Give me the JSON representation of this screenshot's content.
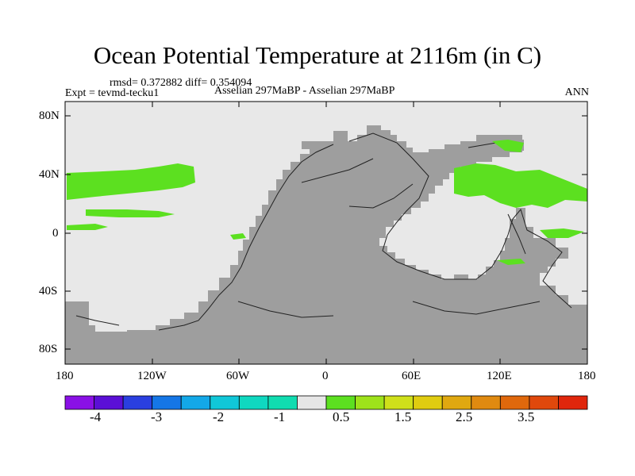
{
  "title": "Ocean Potential Temperature at 2116m (in C)",
  "stats": "rmsd= 0.372882 diff= 0.354094",
  "expt": "Expt = tevmd-tecku1",
  "subtitle": "Asselian 297MaBP - Asselian 297MaBP",
  "season": "ANN",
  "map": {
    "land_color": "#9e9e9e",
    "ocean_color": "#e8e8e8",
    "lat_ticks": [
      "80N",
      "40N",
      "0",
      "40S",
      "80S"
    ],
    "lon_ticks": [
      "180",
      "120W",
      "60W",
      "0",
      "60E",
      "120E",
      "180"
    ]
  },
  "colorbar": {
    "colors": [
      "#8a10e6",
      "#5b0fd6",
      "#2a3fe0",
      "#1576e6",
      "#13a8e8",
      "#10c7d8",
      "#0fd8c0",
      "#10dcb0",
      "#e6e6e6",
      "#5ce020",
      "#9ee21a",
      "#cfe01a",
      "#e0cc10",
      "#e0a810",
      "#e08a10",
      "#e0680c",
      "#e0480c",
      "#e0260c"
    ],
    "labels": [
      "-4",
      "-3",
      "-2",
      "-1",
      "0.5",
      "1.5",
      "2.5",
      "3.5"
    ]
  }
}
